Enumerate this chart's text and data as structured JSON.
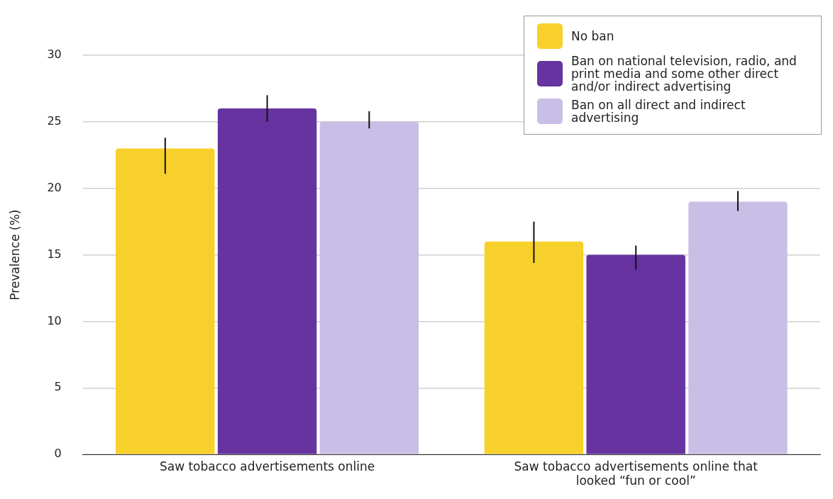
{
  "chart_data": {
    "type": "bar",
    "ylabel": "Prevalence (%)",
    "categories": [
      "Saw tobacco advertisements online",
      "Saw tobacco advertisements online that looked “fun or cool”"
    ],
    "series": [
      {
        "name": "No ban",
        "color": "#f8d02b",
        "values": [
          23,
          16
        ],
        "errors": [
          [
            21.1,
            23.8
          ],
          [
            14.4,
            17.5
          ]
        ]
      },
      {
        "name": "Ban on national television, radio, and print media and some other direct and/or indirect advertising",
        "color": "#6633a0",
        "values": [
          26,
          15
        ],
        "errors": [
          [
            25.0,
            27.0
          ],
          [
            13.9,
            15.7
          ]
        ]
      },
      {
        "name": "Ban on all direct and indirect advertising",
        "color": "#c9bfe6",
        "values": [
          25,
          19
        ],
        "errors": [
          [
            24.5,
            25.8
          ],
          [
            18.3,
            19.8
          ]
        ]
      }
    ],
    "ylim": [
      0,
      30
    ],
    "yticks": [
      0,
      5,
      10,
      15,
      20,
      25,
      30
    ],
    "grid": "y",
    "legend": "top right"
  }
}
